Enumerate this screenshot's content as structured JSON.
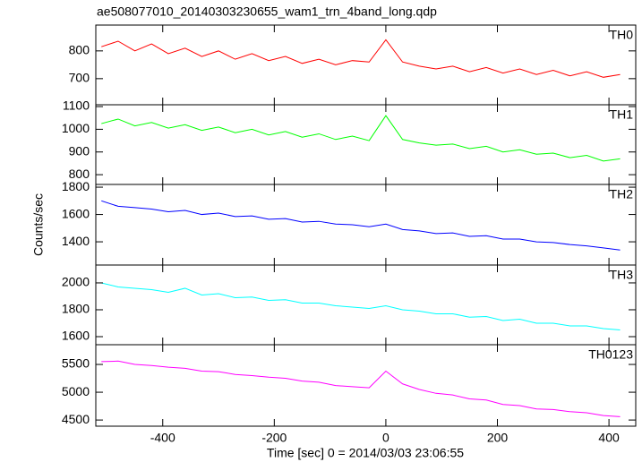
{
  "chart_data": {
    "type": "line",
    "title": "ae508077010_20140303230655_wam1_trn_4band_long.qdp",
    "x_label": "Time [sec] 0 = 2014/03/03 23:06:55",
    "y_label": "Counts/sec",
    "xlim": [
      -520,
      448
    ],
    "xticks": [
      -400,
      -200,
      0,
      200,
      400
    ],
    "x": [
      -510,
      -480,
      -450,
      -420,
      -390,
      -360,
      -330,
      -300,
      -270,
      -240,
      -210,
      -180,
      -150,
      -120,
      -90,
      -60,
      -30,
      0,
      30,
      60,
      90,
      120,
      150,
      180,
      210,
      240,
      270,
      300,
      330,
      360,
      390,
      420
    ],
    "panels": [
      {
        "label": "TH0",
        "color": "#ff0000",
        "ylim": [
          606,
          893
        ],
        "yticks": [
          700,
          800
        ],
        "values": [
          815,
          835,
          800,
          825,
          790,
          810,
          780,
          800,
          770,
          790,
          765,
          780,
          755,
          770,
          750,
          765,
          760,
          840,
          760,
          745,
          735,
          745,
          725,
          740,
          720,
          735,
          715,
          730,
          710,
          725,
          705,
          715
        ]
      },
      {
        "label": "TH1",
        "color": "#00ff00",
        "ylim": [
          757,
          1108
        ],
        "yticks": [
          800,
          900,
          1000,
          1100
        ],
        "values": [
          1025,
          1045,
          1015,
          1030,
          1005,
          1020,
          995,
          1010,
          985,
          1000,
          975,
          990,
          965,
          980,
          955,
          970,
          950,
          1060,
          955,
          940,
          930,
          935,
          915,
          925,
          900,
          910,
          890,
          895,
          875,
          885,
          860,
          870
        ]
      },
      {
        "label": "TH2",
        "color": "#0000ff",
        "ylim": [
          1230,
          1820
        ],
        "yticks": [
          1400,
          1600,
          1800
        ],
        "values": [
          1700,
          1660,
          1650,
          1640,
          1620,
          1630,
          1600,
          1610,
          1585,
          1590,
          1565,
          1570,
          1545,
          1550,
          1530,
          1525,
          1510,
          1530,
          1490,
          1480,
          1460,
          1465,
          1440,
          1445,
          1420,
          1420,
          1400,
          1395,
          1380,
          1370,
          1355,
          1340
        ]
      },
      {
        "label": "TH3",
        "color": "#00ffff",
        "ylim": [
          1540,
          2133
        ],
        "yticks": [
          1600,
          1800,
          2000
        ],
        "values": [
          2000,
          1970,
          1960,
          1950,
          1930,
          1960,
          1910,
          1920,
          1890,
          1895,
          1870,
          1875,
          1850,
          1850,
          1830,
          1820,
          1810,
          1830,
          1800,
          1790,
          1770,
          1770,
          1745,
          1750,
          1720,
          1730,
          1700,
          1700,
          1680,
          1680,
          1660,
          1650
        ]
      },
      {
        "label": "TH0123",
        "color": "#ff00ff",
        "ylim": [
          4389,
          5855
        ],
        "yticks": [
          4500,
          5000,
          5500
        ],
        "values": [
          5550,
          5560,
          5500,
          5480,
          5450,
          5430,
          5380,
          5370,
          5320,
          5300,
          5270,
          5250,
          5200,
          5180,
          5120,
          5100,
          5080,
          5380,
          5150,
          5050,
          4980,
          4950,
          4880,
          4860,
          4780,
          4760,
          4700,
          4690,
          4650,
          4630,
          4580,
          4560
        ]
      }
    ]
  }
}
